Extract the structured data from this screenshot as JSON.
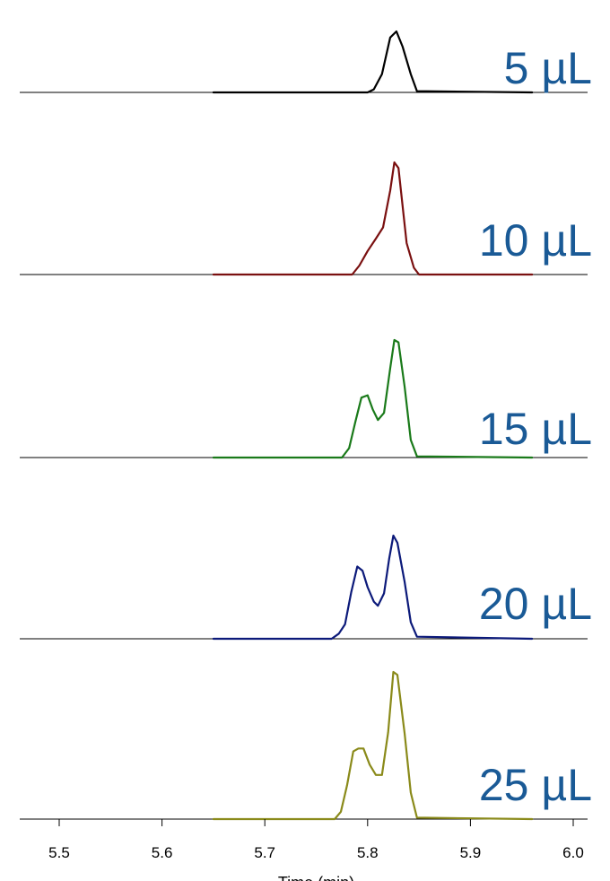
{
  "chart_data": {
    "type": "line",
    "title": "",
    "xlabel": "Time (min)",
    "ylabel": "",
    "xlim": [
      5.46,
      6.02
    ],
    "x_ticks": [
      5.5,
      5.6,
      5.7,
      5.8,
      5.9,
      6.0
    ],
    "x_tick_labels": [
      "5.5",
      "5.6",
      "5.7",
      "5.8",
      "5.9",
      "6.0"
    ],
    "label_color": "#1a5a96",
    "grid": false,
    "legend": "none",
    "series": [
      {
        "name": "5 µL",
        "color": "#000000",
        "x": [
          5.65,
          5.8,
          5.806,
          5.814,
          5.822,
          5.828,
          5.834,
          5.842,
          5.848,
          5.96
        ],
        "y": [
          0,
          0.0,
          0.05,
          0.3,
          0.9,
          1.0,
          0.75,
          0.3,
          0.02,
          0
        ]
      },
      {
        "name": "10 µL",
        "color": "#7a1010",
        "x": [
          5.65,
          5.785,
          5.792,
          5.8,
          5.808,
          5.815,
          5.822,
          5.826,
          5.83,
          5.838,
          5.845,
          5.85,
          5.96
        ],
        "y": [
          0,
          0.0,
          0.08,
          0.21,
          0.32,
          0.42,
          0.75,
          1.0,
          0.95,
          0.28,
          0.06,
          0.0,
          0
        ]
      },
      {
        "name": "15 µL",
        "color": "#1a7a1a",
        "x": [
          5.65,
          5.775,
          5.782,
          5.788,
          5.794,
          5.8,
          5.805,
          5.81,
          5.816,
          5.822,
          5.826,
          5.83,
          5.836,
          5.842,
          5.848,
          5.96
        ],
        "y": [
          0,
          0.0,
          0.08,
          0.3,
          0.51,
          0.53,
          0.41,
          0.32,
          0.38,
          0.76,
          1.0,
          0.98,
          0.6,
          0.15,
          0.01,
          0
        ]
      },
      {
        "name": "20 µL",
        "color": "#0c1a7a",
        "x": [
          5.65,
          5.765,
          5.772,
          5.778,
          5.784,
          5.79,
          5.795,
          5.8,
          5.806,
          5.81,
          5.816,
          5.821,
          5.825,
          5.829,
          5.836,
          5.842,
          5.848,
          5.96
        ],
        "y": [
          0,
          0.0,
          0.05,
          0.14,
          0.45,
          0.7,
          0.66,
          0.5,
          0.36,
          0.32,
          0.44,
          0.78,
          1.0,
          0.93,
          0.55,
          0.16,
          0.02,
          0
        ]
      },
      {
        "name": "25 µL",
        "color": "#8a8a1a",
        "x": [
          5.65,
          5.768,
          5.774,
          5.78,
          5.786,
          5.791,
          5.796,
          5.802,
          5.808,
          5.814,
          5.82,
          5.825,
          5.829,
          5.836,
          5.842,
          5.848,
          5.96
        ],
        "y": [
          0,
          0.0,
          0.05,
          0.23,
          0.46,
          0.48,
          0.48,
          0.37,
          0.3,
          0.3,
          0.59,
          1.0,
          0.98,
          0.58,
          0.18,
          0.01,
          0
        ]
      }
    ]
  }
}
